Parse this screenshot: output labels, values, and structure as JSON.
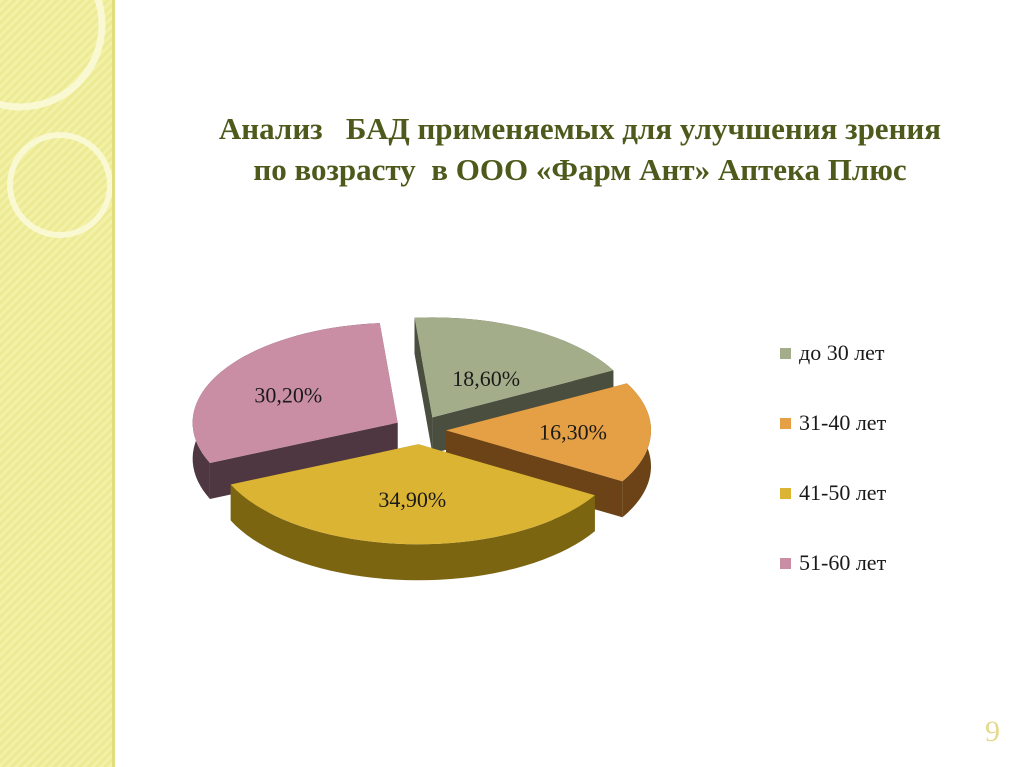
{
  "title_line1": "Анализ   БАД применяемых для улучшения зрения",
  "title_line2": "по возрасту  в ООО «Фарм Ант» Аптека Плюс",
  "page_number": "9",
  "chart_data": {
    "type": "pie",
    "title": "Анализ   БАД применяемых для улучшения зрения по возрасту  в ООО «Фарм Ант» Аптека Плюс",
    "categories": [
      "до 30 лет",
      "31-40 лет",
      "41-50 лет",
      "51-60 лет"
    ],
    "values": [
      18.6,
      16.3,
      34.9,
      30.2
    ],
    "labels": [
      "18,60%",
      "16,30%",
      "34,90%",
      "30,20%"
    ],
    "colors": [
      "#a4ad89",
      "#e59f44",
      "#dcb433",
      "#c98ea4"
    ],
    "side_colors": [
      "#4a4e3f",
      "#6b4316",
      "#7c6511",
      "#4f3741"
    ],
    "legend_position": "right",
    "exploded": true,
    "three_d": true
  }
}
